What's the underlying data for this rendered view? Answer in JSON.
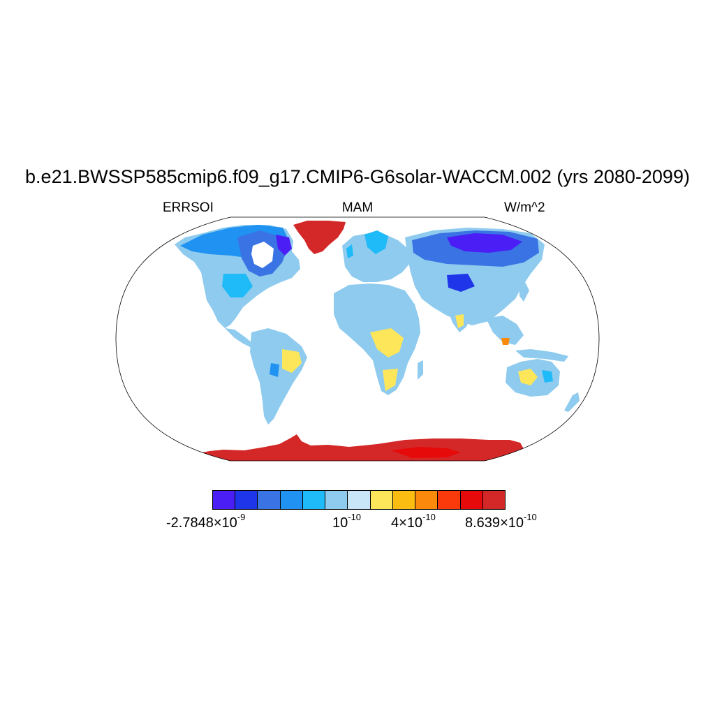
{
  "title": "b.e21.BWSSP585cmip6.f09_g17.CMIP6-G6solar-WACCM.002 (yrs 2080-2099)",
  "left_label": "ERRSOI",
  "center_label": "MAM",
  "right_label": "W/m^2",
  "colorbar": {
    "colors": [
      "#4a1ef5",
      "#1f35ea",
      "#3a74e4",
      "#1f92f2",
      "#1fbaf8",
      "#8ecbee",
      "#c8e6f7",
      "#fde65a",
      "#fbbd12",
      "#fb8a0c",
      "#fb3a0c",
      "#e60a0a",
      "#d42828"
    ],
    "labels": [
      {
        "mantissa": "-2.7848",
        "times": "×",
        "base": "10",
        "exp": "-9"
      },
      {
        "mantissa": "",
        "times": "",
        "base": "10",
        "exp": "-10"
      },
      {
        "mantissa": "4",
        "times": "×",
        "base": "10",
        "exp": "-10"
      },
      {
        "mantissa": "8.639",
        "times": "×",
        "base": "10",
        "exp": "-10"
      }
    ]
  },
  "map": {
    "projection": "Robinson",
    "ocean_color": "#ffffff",
    "outline_color": "#000000"
  }
}
